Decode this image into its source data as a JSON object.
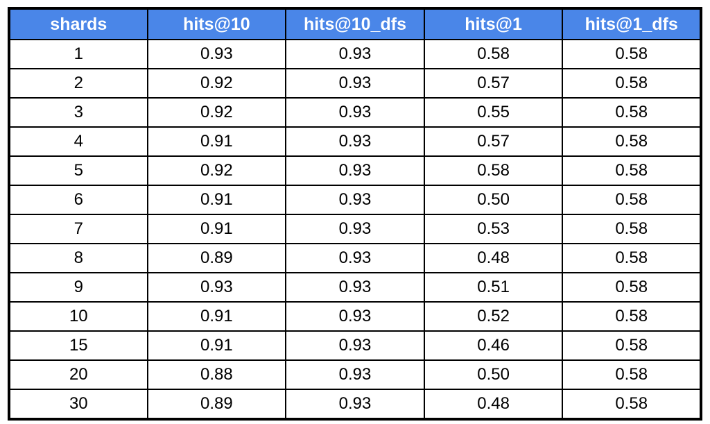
{
  "chart_data": {
    "type": "table",
    "title": "",
    "columns": [
      "shards",
      "hits@10",
      "hits@10_dfs",
      "hits@1",
      "hits@1_dfs"
    ],
    "rows": [
      [
        "1",
        "0.93",
        "0.93",
        "0.58",
        "0.58"
      ],
      [
        "2",
        "0.92",
        "0.93",
        "0.57",
        "0.58"
      ],
      [
        "3",
        "0.92",
        "0.93",
        "0.55",
        "0.58"
      ],
      [
        "4",
        "0.91",
        "0.93",
        "0.57",
        "0.58"
      ],
      [
        "5",
        "0.92",
        "0.93",
        "0.58",
        "0.58"
      ],
      [
        "6",
        "0.91",
        "0.93",
        "0.50",
        "0.58"
      ],
      [
        "7",
        "0.91",
        "0.93",
        "0.53",
        "0.58"
      ],
      [
        "8",
        "0.89",
        "0.93",
        "0.48",
        "0.58"
      ],
      [
        "9",
        "0.93",
        "0.93",
        "0.51",
        "0.58"
      ],
      [
        "10",
        "0.91",
        "0.93",
        "0.52",
        "0.58"
      ],
      [
        "15",
        "0.91",
        "0.93",
        "0.46",
        "0.58"
      ],
      [
        "20",
        "0.88",
        "0.93",
        "0.50",
        "0.58"
      ],
      [
        "30",
        "0.89",
        "0.93",
        "0.48",
        "0.58"
      ]
    ],
    "series": [
      {
        "name": "hits@10",
        "x": [
          1,
          2,
          3,
          4,
          5,
          6,
          7,
          8,
          9,
          10,
          15,
          20,
          30
        ],
        "values": [
          0.93,
          0.92,
          0.92,
          0.91,
          0.92,
          0.91,
          0.91,
          0.89,
          0.93,
          0.91,
          0.91,
          0.88,
          0.89
        ]
      },
      {
        "name": "hits@10_dfs",
        "x": [
          1,
          2,
          3,
          4,
          5,
          6,
          7,
          8,
          9,
          10,
          15,
          20,
          30
        ],
        "values": [
          0.93,
          0.93,
          0.93,
          0.93,
          0.93,
          0.93,
          0.93,
          0.93,
          0.93,
          0.93,
          0.93,
          0.93,
          0.93
        ]
      },
      {
        "name": "hits@1",
        "x": [
          1,
          2,
          3,
          4,
          5,
          6,
          7,
          8,
          9,
          10,
          15,
          20,
          30
        ],
        "values": [
          0.58,
          0.57,
          0.55,
          0.57,
          0.58,
          0.5,
          0.53,
          0.48,
          0.51,
          0.52,
          0.46,
          0.5,
          0.48
        ]
      },
      {
        "name": "hits@1_dfs",
        "x": [
          1,
          2,
          3,
          4,
          5,
          6,
          7,
          8,
          9,
          10,
          15,
          20,
          30
        ],
        "values": [
          0.58,
          0.58,
          0.58,
          0.58,
          0.58,
          0.58,
          0.58,
          0.58,
          0.58,
          0.58,
          0.58,
          0.58,
          0.58
        ]
      }
    ],
    "layout": {
      "grid": "on",
      "legend": "none"
    }
  },
  "colors": {
    "header_bg": "#4a86e8",
    "header_text": "#ffffff",
    "border": "#000000",
    "cell_bg": "#ffffff",
    "cell_text": "#000000"
  }
}
